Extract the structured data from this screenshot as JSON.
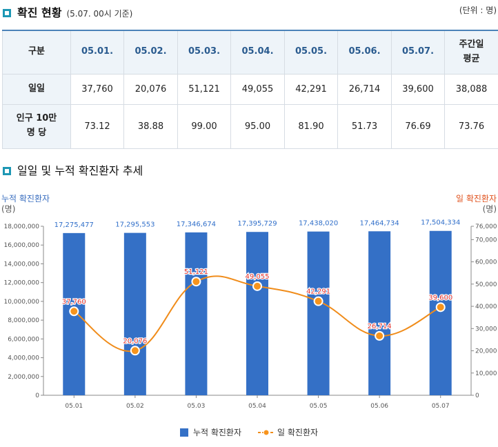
{
  "section1": {
    "title": "확진 현황",
    "subtitle": "(5.07. 00시 기준)",
    "unit": "(단위 : 명)"
  },
  "table": {
    "headers": [
      "구분",
      "05.01.",
      "05.02.",
      "05.03.",
      "05.04.",
      "05.05.",
      "05.06.",
      "05.07.",
      "주간일\n평균"
    ],
    "rows": [
      {
        "label": "일일",
        "values": [
          "37,760",
          "20,076",
          "51,121",
          "49,055",
          "42,291",
          "26,714",
          "39,600",
          "38,088"
        ]
      },
      {
        "label": "인구 10만\n명 당",
        "values": [
          "73.12",
          "38.88",
          "99.00",
          "95.00",
          "81.90",
          "51.73",
          "76.69",
          "73.76"
        ]
      }
    ]
  },
  "section2": {
    "title": "일일 및 누적 확진환자 추세"
  },
  "chart_data": {
    "type": "bar+line",
    "categories": [
      "05.01",
      "05.02",
      "05.03",
      "05.04",
      "05.05",
      "05.06",
      "05.07"
    ],
    "left_axis": {
      "label": "누적 확진환자",
      "unit": "(명)",
      "range": [
        0,
        18000000
      ],
      "ticks": [
        "0",
        "2,000,000",
        "4,000,000",
        "6,000,000",
        "8,000,000",
        "10,000,000",
        "12,000,000",
        "14,000,000",
        "16,000,000",
        "18,000,000"
      ]
    },
    "right_axis": {
      "label": "일 확진환자",
      "unit": "(명)",
      "range": [
        0,
        76000
      ],
      "ticks": [
        "0",
        "10,000",
        "20,000",
        "30,000",
        "40,000",
        "50,000",
        "60,000",
        "70,000",
        "76,000"
      ]
    },
    "series": [
      {
        "name": "누적 확진환자",
        "type": "bar",
        "axis": "left",
        "values": [
          17275477,
          17295553,
          17346674,
          17395729,
          17438020,
          17464734,
          17504334
        ],
        "labels": [
          "17,275,477",
          "17,295,553",
          "17,346,674",
          "17,395,729",
          "17,438,020",
          "17,464,734",
          "17,504,334"
        ]
      },
      {
        "name": "일 확진환자",
        "type": "line",
        "axis": "right",
        "values": [
          37760,
          20076,
          51121,
          49055,
          42291,
          26714,
          39600
        ],
        "labels": [
          "37,760",
          "20,076",
          "51,121",
          "49,055",
          "42,291",
          "26,714",
          "39,600"
        ]
      }
    ],
    "colors": {
      "bar": "#3470c6",
      "line": "#f08c1a",
      "marker_fill": "#f7941d",
      "point_label": "#e2312b",
      "left_axis_title": "#3b6fc0",
      "right_axis_title": "#e0531f"
    },
    "legend": "bottom-center",
    "grid": false
  }
}
